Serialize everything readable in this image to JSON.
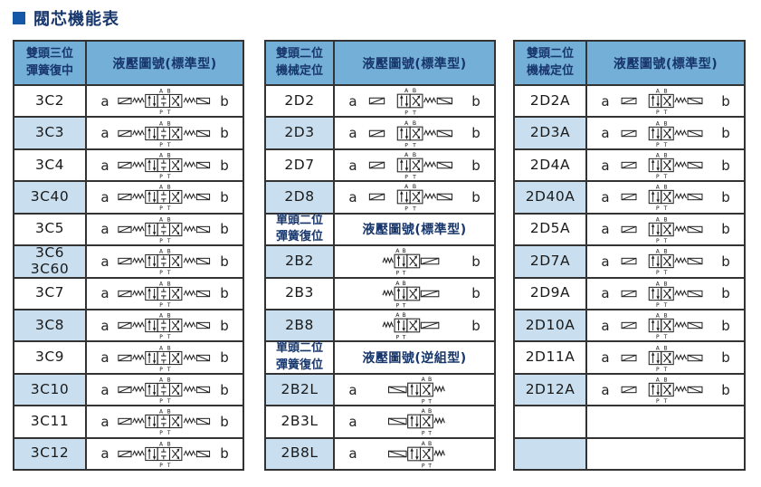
{
  "title": {
    "text": "閥芯機能表"
  },
  "symbol_ports": {
    "top": "A B",
    "bottom": "P T"
  },
  "colors": {
    "header_bg": "#74AFD7",
    "alt_row_bg": "#C9DFEF",
    "border": "#333333",
    "title_color": "#17366B",
    "bullet_color": "#1458A7"
  },
  "tables": [
    {
      "name": "left",
      "label_col_width": 80,
      "sections": [
        {
          "header": {
            "label_lines": [
              "雙頭三位",
              "彈簧復中"
            ],
            "title": "液壓圖號(標準型)"
          },
          "rows": [
            {
              "labels": [
                "3C2"
              ],
              "a": "a",
              "b": "b",
              "sym": "3c"
            },
            {
              "labels": [
                "3C3"
              ],
              "a": "a",
              "b": "b",
              "sym": "3c"
            },
            {
              "labels": [
                "3C4"
              ],
              "a": "a",
              "b": "b",
              "sym": "3c"
            },
            {
              "labels": [
                "3C40"
              ],
              "a": "a",
              "b": "b",
              "sym": "3c"
            },
            {
              "labels": [
                "3C5"
              ],
              "a": "a",
              "b": "b",
              "sym": "3c"
            },
            {
              "labels": [
                "3C6",
                "3C60"
              ],
              "a": "a",
              "b": "b",
              "sym": "3c"
            },
            {
              "labels": [
                "3C7"
              ],
              "a": "a",
              "b": "b",
              "sym": "3c"
            },
            {
              "labels": [
                "3C8"
              ],
              "a": "a",
              "b": "b",
              "sym": "3c"
            },
            {
              "labels": [
                "3C9"
              ],
              "a": "a",
              "b": "b",
              "sym": "3c"
            },
            {
              "labels": [
                "3C10"
              ],
              "a": "a",
              "b": "b",
              "sym": "3c"
            },
            {
              "labels": [
                "3C11"
              ],
              "a": "a",
              "b": "b",
              "sym": "3c"
            },
            {
              "labels": [
                "3C12"
              ],
              "a": "a",
              "b": "b",
              "sym": "3c"
            }
          ]
        }
      ]
    },
    {
      "name": "middle",
      "label_col_width": 76,
      "sections": [
        {
          "header": {
            "label_lines": [
              "雙頭二位",
              "機械定位"
            ],
            "title": "液壓圖號(標準型)"
          },
          "rows": [
            {
              "labels": [
                "2D2"
              ],
              "a": "a",
              "b": "b",
              "sym": "2d"
            },
            {
              "labels": [
                "2D3"
              ],
              "a": "a",
              "b": "b",
              "sym": "2d"
            },
            {
              "labels": [
                "2D7"
              ],
              "a": "a",
              "b": "b",
              "sym": "2d"
            },
            {
              "labels": [
                "2D8"
              ],
              "a": "a",
              "b": "b",
              "sym": "2d"
            }
          ]
        },
        {
          "header": {
            "label_lines": [
              "單頭二位",
              "彈簧復位"
            ],
            "title": "液壓圖號(標準型)"
          },
          "rows": [
            {
              "labels": [
                "2B2"
              ],
              "a": "",
              "b": "b",
              "sym": "2b"
            },
            {
              "labels": [
                "2B3"
              ],
              "a": "",
              "b": "b",
              "sym": "2b"
            },
            {
              "labels": [
                "2B8"
              ],
              "a": "",
              "b": "b",
              "sym": "2b"
            }
          ]
        },
        {
          "header": {
            "label_lines": [
              "單頭二位",
              "彈簧復位"
            ],
            "title": "液壓圖號(逆組型)"
          },
          "rows": [
            {
              "labels": [
                "2B2L"
              ],
              "a": "a",
              "b": "",
              "sym": "2bl"
            },
            {
              "labels": [
                "2B3L"
              ],
              "a": "a",
              "b": "",
              "sym": "2bl"
            },
            {
              "labels": [
                "2B8L"
              ],
              "a": "a",
              "b": "",
              "sym": "2bl"
            }
          ]
        }
      ]
    },
    {
      "name": "right",
      "label_col_width": 80,
      "sections": [
        {
          "header": {
            "label_lines": [
              "雙頭二位",
              "機械定位"
            ],
            "title": "液壓圖號(標準型)"
          },
          "rows": [
            {
              "labels": [
                "2D2A"
              ],
              "a": "a",
              "b": "b",
              "sym": "2da"
            },
            {
              "labels": [
                "2D3A"
              ],
              "a": "a",
              "b": "b",
              "sym": "2da"
            },
            {
              "labels": [
                "2D4A"
              ],
              "a": "a",
              "b": "b",
              "sym": "2da"
            },
            {
              "labels": [
                "2D40A"
              ],
              "a": "a",
              "b": "b",
              "sym": "2da"
            },
            {
              "labels": [
                "2D5A"
              ],
              "a": "a",
              "b": "b",
              "sym": "2da"
            },
            {
              "labels": [
                "2D7A"
              ],
              "a": "a",
              "b": "b",
              "sym": "2da"
            },
            {
              "labels": [
                "2D9A"
              ],
              "a": "a",
              "b": "b",
              "sym": "2da"
            },
            {
              "labels": [
                "2D10A"
              ],
              "a": "a",
              "b": "b",
              "sym": "2da"
            },
            {
              "labels": [
                "2D11A"
              ],
              "a": "a",
              "b": "b",
              "sym": "2da"
            },
            {
              "labels": [
                "2D12A"
              ],
              "a": "a",
              "b": "b",
              "sym": "2da"
            },
            {
              "labels": [],
              "a": "",
              "b": "",
              "sym": "none"
            },
            {
              "labels": [],
              "a": "",
              "b": "",
              "sym": "none"
            }
          ]
        }
      ]
    }
  ]
}
